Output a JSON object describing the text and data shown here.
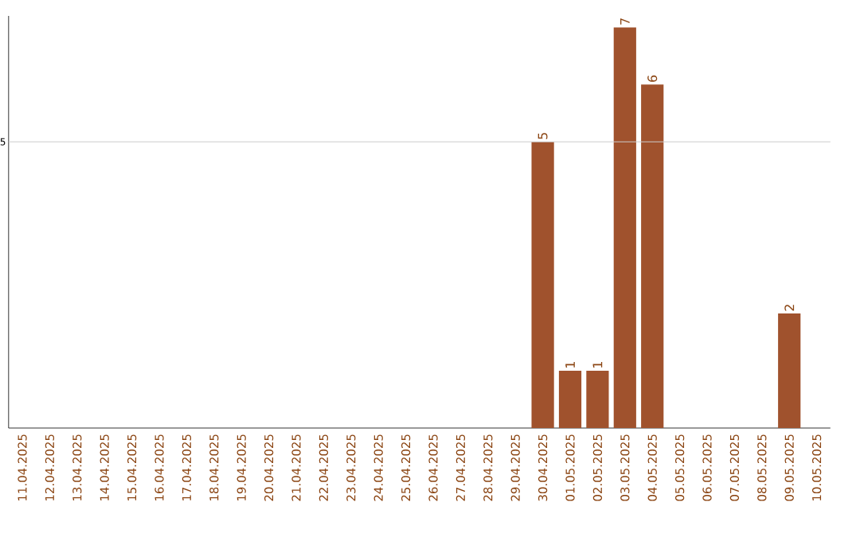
{
  "chart_data": {
    "type": "bar",
    "categories": [
      "11.04.2025",
      "12.04.2025",
      "13.04.2025",
      "14.04.2025",
      "15.04.2025",
      "16.04.2025",
      "17.04.2025",
      "18.04.2025",
      "19.04.2025",
      "20.04.2025",
      "21.04.2025",
      "22.04.2025",
      "23.04.2025",
      "24.04.2025",
      "25.04.2025",
      "26.04.2025",
      "27.04.2025",
      "28.04.2025",
      "29.04.2025",
      "30.04.2025",
      "01.05.2025",
      "02.05.2025",
      "03.05.2025",
      "04.05.2025",
      "05.05.2025",
      "06.05.2025",
      "07.05.2025",
      "08.05.2025",
      "09.05.2025",
      "10.05.2025"
    ],
    "values": [
      null,
      null,
      null,
      null,
      null,
      null,
      null,
      null,
      null,
      null,
      null,
      null,
      null,
      null,
      null,
      null,
      null,
      null,
      null,
      5,
      1,
      1,
      7,
      6,
      null,
      null,
      null,
      null,
      2,
      null
    ],
    "data_labels": true,
    "color": "#a0522d",
    "ylim": [
      0,
      7.2
    ],
    "ref_lines": [
      {
        "axis": "y",
        "value": 5,
        "label": "5",
        "color": "#cccccc"
      }
    ]
  }
}
